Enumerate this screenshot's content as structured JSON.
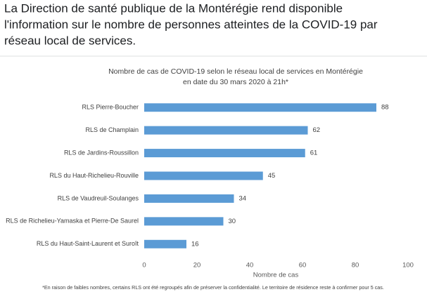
{
  "post_text": [
    "La Direction de santé publique de la Montérégie rend disponible",
    "l'information sur le nombre de personnes atteintes de la COVID-19 par",
    "réseau local de services."
  ],
  "chart_data": {
    "type": "bar",
    "orientation": "horizontal",
    "title": "Nombre de cas de COVID-19 selon le réseau local de services  en Montérégie",
    "subtitle": "en date du 30 mars 2020 à 21h*",
    "categories": [
      "RLS Pierre-Boucher",
      "RLS de Champlain",
      "RLS de Jardins-Roussillon",
      "RLS du Haut-Richelieu-Rouville",
      "RLS de Vaudreuil-Soulanges",
      "RLS de Richelieu-Yamaska et Pierre-De Saurel",
      "RLS du Haut-Saint-Laurent et Suroît"
    ],
    "values": [
      88,
      62,
      61,
      45,
      34,
      30,
      16
    ],
    "color": "#5b9bd5",
    "xlim": [
      0,
      100
    ],
    "xticks": [
      0,
      20,
      40,
      60,
      80,
      100
    ],
    "x_label": "Nombre de cas",
    "grid": false,
    "footnote": "*En raison de faibles nombres, certains RLS ont été regroupés afin de préserver la confidentialité.  Le territoire de résidence reste à confirmer pour 5 cas."
  }
}
